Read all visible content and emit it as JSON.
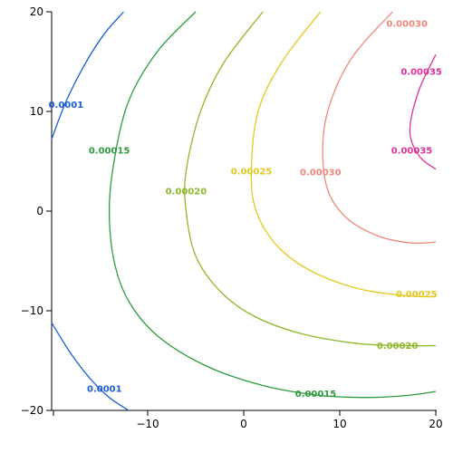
{
  "chart_data": {
    "type": "contour",
    "title": "",
    "xlabel": "",
    "ylabel": "",
    "xlim": [
      -20,
      20
    ],
    "ylim": [
      -20,
      20
    ],
    "x_ticks": [
      {
        "value": -10,
        "label": "−10"
      },
      {
        "value": 0,
        "label": "0"
      },
      {
        "value": 10,
        "label": "10"
      },
      {
        "value": 20,
        "label": "20"
      }
    ],
    "y_ticks": [
      {
        "value": 20,
        "label": "20"
      },
      {
        "value": 10,
        "label": "10"
      },
      {
        "value": 0,
        "label": "0"
      },
      {
        "value": -10,
        "label": "−10"
      },
      {
        "value": -20,
        "label": "−20"
      }
    ],
    "grid": false,
    "levels": [
      {
        "value": "0.0001",
        "color": "#1a5fd6",
        "curves": [
          [
            [
              -20,
              7.2
            ],
            [
              -18.5,
              11
            ],
            [
              -16.5,
              14.8
            ],
            [
              -14.5,
              17.8
            ],
            [
              -12.5,
              20
            ]
          ],
          [
            [
              -20,
              -11.2
            ],
            [
              -18,
              -14.3
            ],
            [
              -16,
              -16.8
            ],
            [
              -14,
              -18.7
            ],
            [
              -12,
              -20
            ]
          ]
        ],
        "labels": [
          {
            "text": "0.0001",
            "x": -18.5,
            "y": 10.7
          },
          {
            "text": "0.0001",
            "x": -14.5,
            "y": -17.8
          }
        ]
      },
      {
        "value": "0.00015",
        "color": "#2e9c3e",
        "curves": [
          [
            [
              -5,
              20
            ],
            [
              -9,
              16
            ],
            [
              -12,
              11
            ],
            [
              -13.5,
              5
            ],
            [
              -14,
              0
            ],
            [
              -13.5,
              -5
            ],
            [
              -12,
              -9
            ],
            [
              -9,
              -12.5
            ],
            [
              -4,
              -15.5
            ],
            [
              2,
              -17.5
            ],
            [
              8,
              -18.5
            ],
            [
              13,
              -18.7
            ],
            [
              17,
              -18.5
            ],
            [
              20,
              -18.1
            ]
          ]
        ],
        "labels": [
          {
            "text": "0.00015",
            "x": -14,
            "y": 6.1
          },
          {
            "text": "0.00015",
            "x": 7.5,
            "y": -18.3
          }
        ]
      },
      {
        "value": "0.00020",
        "color": "#8fb82b",
        "curves": [
          [
            [
              2,
              20
            ],
            [
              -2,
              15
            ],
            [
              -4.5,
              10
            ],
            [
              -6,
              4
            ],
            [
              -6,
              0
            ],
            [
              -5,
              -4.5
            ],
            [
              -2.5,
              -8
            ],
            [
              1,
              -10.5
            ],
            [
              6,
              -12.3
            ],
            [
              12,
              -13.3
            ],
            [
              17,
              -13.5
            ],
            [
              20,
              -13.5
            ]
          ]
        ],
        "labels": [
          {
            "text": "0.00020",
            "x": -6,
            "y": 2
          },
          {
            "text": "0.00020",
            "x": 16,
            "y": -13.5
          }
        ]
      },
      {
        "value": "0.00025",
        "color": "#e6c822",
        "curves": [
          [
            [
              8,
              20
            ],
            [
              4,
              15
            ],
            [
              1.5,
              10
            ],
            [
              0.8,
              4
            ],
            [
              1.3,
              0
            ],
            [
              3.5,
              -3.5
            ],
            [
              7,
              -6
            ],
            [
              12,
              -7.8
            ],
            [
              17,
              -8.5
            ],
            [
              20,
              -8.6
            ]
          ]
        ],
        "labels": [
          {
            "text": "0.00025",
            "x": 0.8,
            "y": 4
          },
          {
            "text": "0.00025",
            "x": 18,
            "y": -8.3
          }
        ]
      },
      {
        "value": "0.00030",
        "color": "#f0887c",
        "curves": [
          [
            [
              15.5,
              20
            ],
            [
              11,
              15
            ],
            [
              8.5,
              9
            ],
            [
              8.5,
              3
            ],
            [
              10.5,
              -0.5
            ],
            [
              14,
              -2.5
            ],
            [
              17.5,
              -3.2
            ],
            [
              20,
              -3.1
            ]
          ]
        ],
        "labels": [
          {
            "text": "0.00030",
            "x": 17,
            "y": 18.8
          },
          {
            "text": "0.00030",
            "x": 8,
            "y": 3.9
          }
        ]
      },
      {
        "value": "0.00035",
        "color": "#e0339a",
        "curves": [
          [
            [
              20,
              15.7
            ],
            [
              18.2,
              12
            ],
            [
              17.3,
              8
            ],
            [
              18.3,
              5.5
            ],
            [
              20,
              4.2
            ]
          ]
        ],
        "labels": [
          {
            "text": "0.00035",
            "x": 18.5,
            "y": 14
          },
          {
            "text": "0.00035",
            "x": 17.5,
            "y": 6.1
          }
        ]
      }
    ]
  }
}
